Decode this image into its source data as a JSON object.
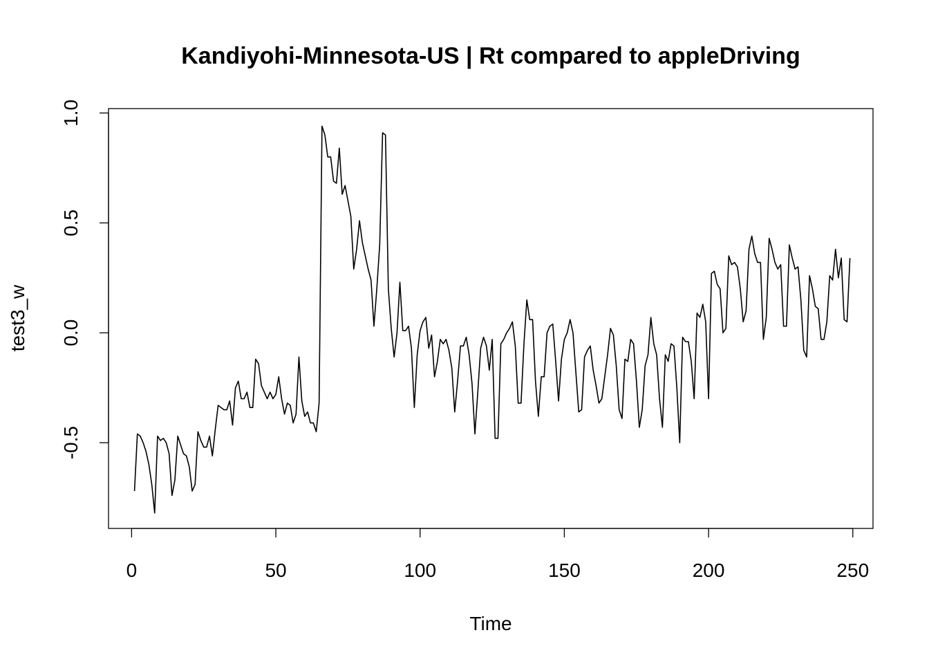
{
  "chart_data": {
    "type": "line",
    "title": "Kandiyohi-Minnesota-US | Rt compared to appleDriving",
    "xlabel": "Time",
    "ylabel": "test3_w",
    "xlim": [
      -8,
      257
    ],
    "ylim": [
      -0.89,
      1.02
    ],
    "x_ticks": [
      0,
      50,
      100,
      150,
      200,
      250
    ],
    "y_ticks": [
      -0.5,
      0.0,
      0.5,
      1.0
    ],
    "x_tick_labels": [
      "0",
      "50",
      "100",
      "150",
      "200",
      "250"
    ],
    "y_tick_labels": [
      "-0.5",
      "0.0",
      "0.5",
      "1.0"
    ],
    "grid": false,
    "legend": "none",
    "series": [
      {
        "color": "#000000",
        "x_start": 1,
        "values": [
          -0.72,
          -0.46,
          -0.47,
          -0.5,
          -0.54,
          -0.6,
          -0.69,
          -0.82,
          -0.47,
          -0.49,
          -0.48,
          -0.5,
          -0.55,
          -0.74,
          -0.67,
          -0.47,
          -0.51,
          -0.55,
          -0.56,
          -0.61,
          -0.72,
          -0.69,
          -0.45,
          -0.49,
          -0.52,
          -0.52,
          -0.47,
          -0.56,
          -0.44,
          -0.33,
          -0.34,
          -0.35,
          -0.35,
          -0.31,
          -0.42,
          -0.25,
          -0.22,
          -0.3,
          -0.3,
          -0.27,
          -0.34,
          -0.34,
          -0.12,
          -0.14,
          -0.24,
          -0.27,
          -0.3,
          -0.27,
          -0.3,
          -0.28,
          -0.2,
          -0.3,
          -0.37,
          -0.32,
          -0.33,
          -0.41,
          -0.37,
          -0.11,
          -0.31,
          -0.38,
          -0.36,
          -0.41,
          -0.41,
          -0.45,
          -0.32,
          0.94,
          0.9,
          0.8,
          0.8,
          0.69,
          0.68,
          0.84,
          0.63,
          0.67,
          0.6,
          0.53,
          0.29,
          0.38,
          0.51,
          0.41,
          0.35,
          0.29,
          0.24,
          0.03,
          0.2,
          0.4,
          0.91,
          0.9,
          0.2,
          0.02,
          -0.11,
          0.0,
          0.23,
          0.01,
          0.01,
          0.03,
          -0.07,
          -0.34,
          -0.1,
          0.01,
          0.05,
          0.07,
          -0.07,
          -0.01,
          -0.2,
          -0.13,
          -0.03,
          -0.05,
          -0.03,
          -0.08,
          -0.16,
          -0.36,
          -0.22,
          -0.06,
          -0.06,
          -0.02,
          -0.1,
          -0.23,
          -0.46,
          -0.27,
          -0.07,
          -0.02,
          -0.06,
          -0.17,
          -0.03,
          -0.48,
          -0.48,
          -0.05,
          -0.03,
          0.0,
          0.02,
          0.05,
          -0.06,
          -0.32,
          -0.32,
          -0.05,
          0.15,
          0.06,
          0.06,
          -0.22,
          -0.38,
          -0.2,
          -0.2,
          0.0,
          0.03,
          0.04,
          -0.13,
          -0.31,
          -0.12,
          -0.03,
          0.0,
          0.06,
          0.0,
          -0.18,
          -0.36,
          -0.35,
          -0.11,
          -0.08,
          -0.06,
          -0.17,
          -0.24,
          -0.32,
          -0.3,
          -0.2,
          -0.1,
          0.02,
          -0.01,
          -0.15,
          -0.35,
          -0.39,
          -0.12,
          -0.13,
          -0.03,
          -0.05,
          -0.22,
          -0.43,
          -0.35,
          -0.15,
          -0.1,
          0.07,
          -0.05,
          -0.1,
          -0.3,
          -0.43,
          -0.1,
          -0.13,
          -0.05,
          -0.06,
          -0.25,
          -0.5,
          -0.02,
          -0.04,
          -0.04,
          -0.13,
          -0.3,
          0.09,
          0.07,
          0.13,
          0.05,
          -0.3,
          0.27,
          0.28,
          0.22,
          0.2,
          0.0,
          0.02,
          0.35,
          0.31,
          0.32,
          0.3,
          0.2,
          0.05,
          0.1,
          0.38,
          0.44,
          0.36,
          0.32,
          0.32,
          -0.03,
          0.07,
          0.43,
          0.38,
          0.32,
          0.29,
          0.31,
          0.03,
          0.03,
          0.4,
          0.34,
          0.29,
          0.3,
          0.15,
          -0.08,
          -0.11,
          0.26,
          0.2,
          0.12,
          0.11,
          -0.03,
          -0.03,
          0.05,
          0.26,
          0.24,
          0.38,
          0.25,
          0.34,
          0.06,
          0.05,
          0.34
        ]
      }
    ]
  }
}
